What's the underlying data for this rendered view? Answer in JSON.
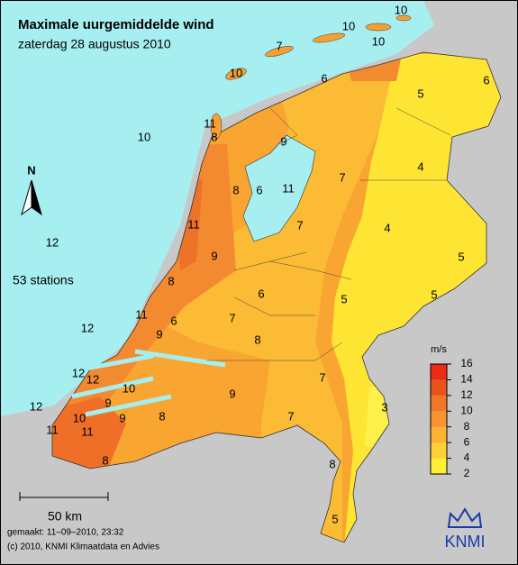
{
  "header": {
    "title": "Maximale uurgemiddelde wind",
    "subtitle": "zaterdag 28 augustus 2010"
  },
  "map": {
    "north": "N",
    "stations": "53 stations",
    "scale": "50 km",
    "labels": [
      10,
      10,
      7,
      10,
      10,
      6,
      6,
      5,
      11,
      8,
      10,
      9,
      7,
      4,
      8,
      6,
      11,
      11,
      7,
      4,
      12,
      9,
      5,
      8,
      6,
      5,
      5,
      11,
      7,
      6,
      12,
      9,
      8,
      7,
      12,
      12,
      9,
      10,
      9,
      3,
      12,
      10,
      9,
      8,
      7,
      11,
      11,
      8,
      8,
      5
    ]
  },
  "legend": {
    "unit": "m/s",
    "ticks": [
      2,
      4,
      6,
      8,
      10,
      12,
      14,
      16
    ],
    "colors": [
      "#ffee33",
      "#ffd035",
      "#fdb232",
      "#f79430",
      "#f07628",
      "#e8531c",
      "#ee2a12"
    ]
  },
  "footer": {
    "made": "gemaakt: 11–09–2010, 23:32",
    "copyright": "(c) 2010, KNMI Klimaatdata en Advies",
    "logo": "KNMI"
  }
}
